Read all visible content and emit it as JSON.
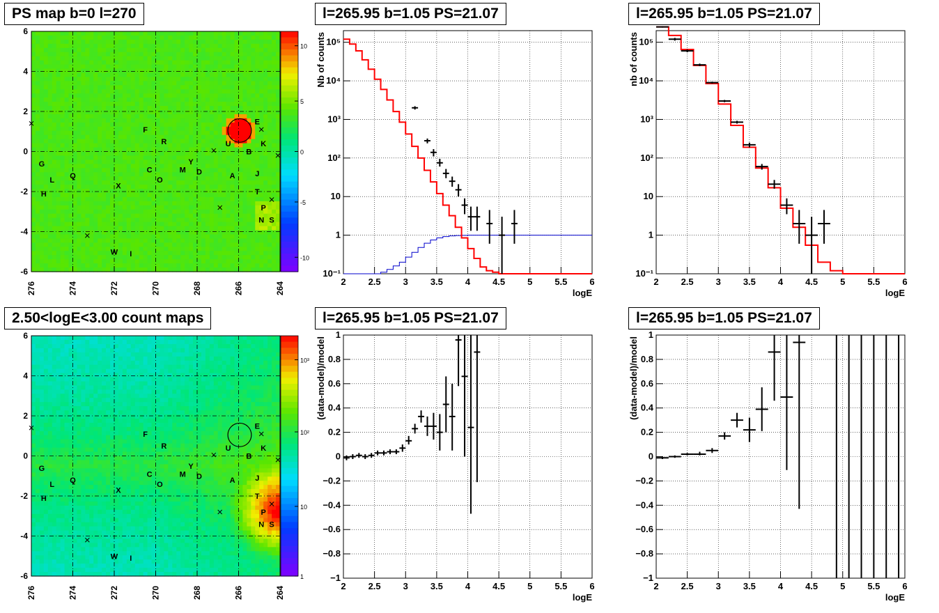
{
  "pads": {
    "map_top": {
      "title": "PS map b=0 l=270"
    },
    "map_bottom": {
      "title": "2.50<logE<3.00 count maps"
    },
    "spec_mid": {
      "title": "l=265.95 b=1.05 PS=21.07"
    },
    "spec_right": {
      "title": "l=265.95 b=1.05 PS=21.07"
    },
    "resid_mid": {
      "title": "l=265.95 b=1.05 PS=21.07"
    },
    "resid_right": {
      "title": "l=265.95 b=1.05 PS=21.07"
    }
  },
  "colors": {
    "data": "#000000",
    "model": "#ff0000",
    "psf": "#0000cc",
    "circle": "#000000"
  },
  "chart_data": [
    {
      "id": "map_top",
      "type": "heatmap",
      "title": "PS map b=0 l=270",
      "x_ticks": [
        "276",
        "274",
        "272",
        "270",
        "268",
        "266",
        "264"
      ],
      "y_ticks": [
        "6",
        "4",
        "2",
        "0",
        "-2",
        "-4",
        "-6"
      ],
      "xlim": [
        276,
        264
      ],
      "ylim": [
        -6,
        6
      ],
      "colorbar": {
        "scale": "linear",
        "range": [
          -12,
          12
        ],
        "ticks": [
          "10",
          "5",
          "0",
          "-5",
          "-10"
        ]
      },
      "grid": true,
      "labels": [
        {
          "t": "E",
          "l": 265.1,
          "b": 1.5
        },
        {
          "t": "U",
          "l": 266.5,
          "b": 0.4
        },
        {
          "t": "B",
          "l": 265.5,
          "b": 0.0
        },
        {
          "t": "K",
          "l": 264.8,
          "b": 0.4
        },
        {
          "t": "F",
          "l": 270.5,
          "b": 1.1
        },
        {
          "t": "R",
          "l": 269.6,
          "b": 0.5
        },
        {
          "t": "G",
          "l": 275.5,
          "b": -0.6
        },
        {
          "t": "L",
          "l": 275.0,
          "b": -1.4
        },
        {
          "t": "Q",
          "l": 274.0,
          "b": -1.2
        },
        {
          "t": "H",
          "l": 275.4,
          "b": -2.1
        },
        {
          "t": "C",
          "l": 270.3,
          "b": -0.9
        },
        {
          "t": "O",
          "l": 269.8,
          "b": -1.4
        },
        {
          "t": "M",
          "l": 268.7,
          "b": -0.9
        },
        {
          "t": "Y",
          "l": 268.3,
          "b": -0.5
        },
        {
          "t": "D",
          "l": 267.9,
          "b": -1.0
        },
        {
          "t": "A",
          "l": 266.3,
          "b": -1.2
        },
        {
          "t": "J",
          "l": 265.1,
          "b": -1.1
        },
        {
          "t": "T",
          "l": 265.1,
          "b": -2.0
        },
        {
          "t": "P",
          "l": 264.8,
          "b": -2.8
        },
        {
          "t": "N",
          "l": 264.9,
          "b": -3.4
        },
        {
          "t": "S",
          "l": 264.4,
          "b": -3.4
        },
        {
          "t": "X",
          "l": 271.8,
          "b": -1.7
        },
        {
          "t": "W",
          "l": 272.0,
          "b": -5.0
        },
        {
          "t": "I",
          "l": 271.2,
          "b": -5.1
        }
      ],
      "crosses": [
        [
          276,
          1.4
        ],
        [
          267.2,
          0.05
        ],
        [
          266.9,
          -2.8
        ],
        [
          273.3,
          -4.2
        ],
        [
          264.9,
          1.1
        ],
        [
          264.4,
          -2.4
        ],
        [
          264.1,
          -0.2
        ]
      ],
      "circle": {
        "l": 265.95,
        "b": 1.05,
        "r": 0.5
      },
      "hotspot": {
        "l": 265.95,
        "b": 1.05
      }
    },
    {
      "id": "map_bottom",
      "type": "heatmap",
      "title": "2.50<logE<3.00 count maps",
      "x_ticks": [
        "276",
        "274",
        "272",
        "270",
        "268",
        "266",
        "264"
      ],
      "y_ticks": [
        "6",
        "4",
        "2",
        "0",
        "-2",
        "-4",
        "-6"
      ],
      "xlim": [
        276,
        264
      ],
      "ylim": [
        -6,
        6
      ],
      "colorbar": {
        "scale": "log",
        "range": [
          1,
          5000
        ],
        "ticks": [
          "10³",
          "10²",
          "10",
          "1"
        ]
      },
      "grid": true,
      "labels": "same_as_map_top",
      "circle": {
        "l": 265.95,
        "b": 1.05,
        "r": 0.5
      },
      "hotspot": {
        "l": 264.0,
        "b": -2.8
      }
    },
    {
      "id": "spec_mid",
      "type": "line",
      "title": "l=265.95 b=1.05 PS=21.07",
      "xlabel": "logE",
      "ylabel": "Nb of counts",
      "xlim": [
        2,
        6
      ],
      "ylim": [
        0.1,
        200000
      ],
      "yscale": "log",
      "x_ticks": [
        "2",
        "2.5",
        "3",
        "3.5",
        "4",
        "4.5",
        "5",
        "5.5",
        "6"
      ],
      "y_ticks": [
        "10⁻¹",
        "1",
        "10",
        "10²",
        "10³",
        "10⁴",
        "10⁵"
      ],
      "grid": true,
      "model_edges": [
        2,
        2.1,
        2.2,
        2.3,
        2.4,
        2.5,
        2.6,
        2.7,
        2.8,
        2.9,
        3,
        3.1,
        3.2,
        3.3,
        3.4,
        3.5,
        3.6,
        3.7,
        3.8,
        3.9,
        4,
        4.1,
        4.2,
        4.3,
        4.4,
        4.5,
        4.6,
        4.7,
        4.8,
        4.9,
        5,
        5.1,
        5.2,
        5.3,
        5.4,
        5.5,
        5.6,
        5.7,
        5.8,
        5.9,
        6
      ],
      "model_values": [
        120000,
        90000,
        60000,
        35000,
        20000,
        11000,
        6000,
        3200,
        1600,
        850,
        420,
        200,
        100,
        48,
        24,
        12,
        6,
        3.2,
        1.6,
        0.85,
        0.45,
        0.25,
        0.15,
        0.12,
        0.11,
        0.1,
        0.1,
        0.1,
        0.1,
        0.1,
        0.1,
        0.1,
        0.1,
        0.1,
        0.1,
        0.1,
        0.1,
        0.1,
        0.1,
        0.1
      ],
      "psf_edges": [
        2,
        2.1,
        2.2,
        2.3,
        2.4,
        2.5,
        2.6,
        2.7,
        2.8,
        2.9,
        3,
        3.1,
        3.2,
        3.3,
        3.4,
        3.5,
        3.6,
        3.7,
        3.8,
        3.9,
        4,
        4.1,
        4.2,
        4.3,
        4.4,
        4.5,
        4.6,
        4.7,
        4.8,
        4.9,
        5,
        5.1,
        5.2,
        5.3,
        5.4,
        5.5,
        5.6,
        5.7,
        5.8,
        5.9,
        6
      ],
      "psf_values": [
        0.1,
        0.1,
        0.1,
        0.1,
        0.1,
        0.1,
        0.11,
        0.13,
        0.16,
        0.2,
        0.27,
        0.36,
        0.48,
        0.62,
        0.75,
        0.85,
        0.92,
        0.96,
        0.98,
        0.99,
        1,
        1,
        1,
        1,
        1,
        1,
        1,
        1,
        1,
        1,
        1,
        1,
        1,
        1,
        1,
        1,
        1,
        1,
        1,
        1,
        1
      ],
      "points": [
        {
          "x": 3.35,
          "y": 280,
          "ex": 0.05,
          "lo": 240,
          "hi": 320
        },
        {
          "x": 3.45,
          "y": 140,
          "ex": 0.05,
          "lo": 110,
          "hi": 170
        },
        {
          "x": 3.55,
          "y": 75,
          "ex": 0.05,
          "lo": 60,
          "hi": 95
        },
        {
          "x": 3.65,
          "y": 40,
          "ex": 0.05,
          "lo": 30,
          "hi": 52
        },
        {
          "x": 3.75,
          "y": 25,
          "ex": 0.05,
          "lo": 18,
          "hi": 33
        },
        {
          "x": 3.85,
          "y": 15,
          "ex": 0.05,
          "lo": 10,
          "hi": 21
        },
        {
          "x": 3.95,
          "y": 6,
          "ex": 0.05,
          "lo": 3.5,
          "hi": 9
        },
        {
          "x": 4.05,
          "y": 3,
          "ex": 0.05,
          "lo": 1.3,
          "hi": 5.5
        },
        {
          "x": 4.15,
          "y": 3,
          "ex": 0.05,
          "lo": 1.3,
          "hi": 5.5
        },
        {
          "x": 4.35,
          "y": 2,
          "ex": 0.05,
          "lo": 0.6,
          "hi": 4.5
        },
        {
          "x": 4.55,
          "y": 1,
          "ex": 0.05,
          "lo": 0.1,
          "hi": 3
        },
        {
          "x": 4.75,
          "y": 2,
          "ex": 0.05,
          "lo": 0.6,
          "hi": 4.5
        },
        {
          "x": 3.15,
          "y": 2000,
          "ex": 0.05,
          "lo": 1800,
          "hi": 2200
        }
      ]
    },
    {
      "id": "spec_right",
      "type": "line",
      "title": "l=265.95 b=1.05 PS=21.07",
      "xlabel": "logE",
      "ylabel": "nb of counts",
      "xlim": [
        2,
        6
      ],
      "ylim": [
        0.1,
        200000
      ],
      "yscale": "log",
      "x_ticks": [
        "2",
        "2.5",
        "3",
        "3.5",
        "4",
        "4.5",
        "5",
        "5.5",
        "6"
      ],
      "y_ticks": [
        "10⁻¹",
        "1",
        "10",
        "10²",
        "10³",
        "10⁴",
        "10⁵"
      ],
      "grid": true,
      "model_edges": [
        2,
        2.2,
        2.4,
        2.6,
        2.8,
        3,
        3.2,
        3.4,
        3.6,
        3.8,
        4,
        4.2,
        4.4,
        4.6,
        4.8,
        5,
        5.2,
        5.4,
        5.6,
        5.8,
        6
      ],
      "model_values": [
        250000,
        150000,
        65000,
        25000,
        8500,
        2500,
        700,
        190,
        55,
        17,
        5,
        1.6,
        0.55,
        0.2,
        0.12,
        0.1,
        0.1,
        0.1,
        0.1,
        0.1
      ],
      "points": [
        {
          "x": 2.1,
          "y": 250000,
          "ex": 0.1,
          "lo": 240000,
          "hi": 260000
        },
        {
          "x": 2.3,
          "y": 120000,
          "ex": 0.1,
          "lo": 110000,
          "hi": 130000
        },
        {
          "x": 2.5,
          "y": 60000,
          "ex": 0.1,
          "lo": 55000,
          "hi": 65000
        },
        {
          "x": 2.7,
          "y": 26000,
          "ex": 0.1,
          "lo": 24000,
          "hi": 28000
        },
        {
          "x": 2.9,
          "y": 9000,
          "ex": 0.1,
          "lo": 8500,
          "hi": 9500
        },
        {
          "x": 3.1,
          "y": 3000,
          "ex": 0.1,
          "lo": 2800,
          "hi": 3200
        },
        {
          "x": 3.3,
          "y": 850,
          "ex": 0.1,
          "lo": 780,
          "hi": 920
        },
        {
          "x": 3.5,
          "y": 220,
          "ex": 0.1,
          "lo": 190,
          "hi": 250
        },
        {
          "x": 3.7,
          "y": 60,
          "ex": 0.1,
          "lo": 50,
          "hi": 70
        },
        {
          "x": 3.9,
          "y": 21,
          "ex": 0.1,
          "lo": 16,
          "hi": 27
        },
        {
          "x": 4.1,
          "y": 6,
          "ex": 0.1,
          "lo": 3.5,
          "hi": 9
        },
        {
          "x": 4.3,
          "y": 2,
          "ex": 0.1,
          "lo": 0.6,
          "hi": 4.5
        },
        {
          "x": 4.5,
          "y": 1,
          "ex": 0.1,
          "lo": 0.1,
          "hi": 3
        },
        {
          "x": 4.7,
          "y": 2,
          "ex": 0.1,
          "lo": 0.6,
          "hi": 4.5
        }
      ]
    },
    {
      "id": "resid_mid",
      "type": "scatter",
      "title": "l=265.95 b=1.05 PS=21.07",
      "xlabel": "logE",
      "ylabel": "(data-model)/model",
      "xlim": [
        2,
        6
      ],
      "ylim": [
        -1,
        1
      ],
      "x_ticks": [
        "2",
        "2.5",
        "3",
        "3.5",
        "4",
        "4.5",
        "5",
        "5.5",
        "6"
      ],
      "y_ticks": [
        "−1",
        "−0.8",
        "−0.6",
        "−0.4",
        "−0.2",
        "0",
        "0.2",
        "0.4",
        "0.6",
        "0.8",
        "1"
      ],
      "grid": true,
      "points": [
        {
          "x": 2.05,
          "y": -0.01,
          "ex": 0.05,
          "lo": -0.03,
          "hi": 0.01
        },
        {
          "x": 2.15,
          "y": 0.0,
          "ex": 0.05,
          "lo": -0.02,
          "hi": 0.02
        },
        {
          "x": 2.25,
          "y": 0.01,
          "ex": 0.05,
          "lo": -0.01,
          "hi": 0.03
        },
        {
          "x": 2.35,
          "y": 0.0,
          "ex": 0.05,
          "lo": -0.02,
          "hi": 0.02
        },
        {
          "x": 2.45,
          "y": 0.01,
          "ex": 0.05,
          "lo": -0.01,
          "hi": 0.03
        },
        {
          "x": 2.55,
          "y": 0.03,
          "ex": 0.05,
          "lo": 0.01,
          "hi": 0.05
        },
        {
          "x": 2.65,
          "y": 0.03,
          "ex": 0.05,
          "lo": 0.01,
          "hi": 0.05
        },
        {
          "x": 2.75,
          "y": 0.04,
          "ex": 0.05,
          "lo": 0.02,
          "hi": 0.06
        },
        {
          "x": 2.85,
          "y": 0.04,
          "ex": 0.05,
          "lo": 0.02,
          "hi": 0.06
        },
        {
          "x": 2.95,
          "y": 0.07,
          "ex": 0.05,
          "lo": 0.04,
          "hi": 0.1
        },
        {
          "x": 3.05,
          "y": 0.13,
          "ex": 0.05,
          "lo": 0.1,
          "hi": 0.17
        },
        {
          "x": 3.15,
          "y": 0.23,
          "ex": 0.05,
          "lo": 0.19,
          "hi": 0.27
        },
        {
          "x": 3.25,
          "y": 0.33,
          "ex": 0.05,
          "lo": 0.28,
          "hi": 0.38
        },
        {
          "x": 3.35,
          "y": 0.25,
          "ex": 0.05,
          "lo": 0.17,
          "hi": 0.33
        },
        {
          "x": 3.45,
          "y": 0.25,
          "ex": 0.05,
          "lo": 0.14,
          "hi": 0.36
        },
        {
          "x": 3.55,
          "y": 0.2,
          "ex": 0.05,
          "lo": 0.05,
          "hi": 0.35
        },
        {
          "x": 3.65,
          "y": 0.43,
          "ex": 0.05,
          "lo": 0.2,
          "hi": 0.66
        },
        {
          "x": 3.75,
          "y": 0.33,
          "ex": 0.05,
          "lo": 0.05,
          "hi": 0.6
        },
        {
          "x": 3.85,
          "y": 0.96,
          "ex": 0.05,
          "lo": 0.58,
          "hi": 1.0
        },
        {
          "x": 3.95,
          "y": 0.66,
          "ex": 0.05,
          "lo": 0.0,
          "hi": 1.0
        },
        {
          "x": 4.05,
          "y": 0.24,
          "ex": 0.05,
          "lo": -0.47,
          "hi": 1.0
        },
        {
          "x": 4.15,
          "y": 0.86,
          "ex": 0.05,
          "lo": -0.21,
          "hi": 1.0
        }
      ]
    },
    {
      "id": "resid_right",
      "type": "scatter",
      "title": "l=265.95 b=1.05 PS=21.07",
      "xlabel": "logE",
      "ylabel": "(data-model)/model",
      "xlim": [
        2,
        6
      ],
      "ylim": [
        -1,
        1
      ],
      "x_ticks": [
        "2",
        "2.5",
        "3",
        "3.5",
        "4",
        "4.5",
        "5",
        "5.5",
        "6"
      ],
      "y_ticks": [
        "−1",
        "−0.8",
        "−0.6",
        "−0.4",
        "−0.2",
        "0",
        "0.2",
        "0.4",
        "0.6",
        "0.8",
        "1"
      ],
      "grid": true,
      "points": [
        {
          "x": 2.1,
          "y": -0.01,
          "ex": 0.1,
          "lo": -0.02,
          "hi": 0.0
        },
        {
          "x": 2.3,
          "y": 0.0,
          "ex": 0.1,
          "lo": -0.01,
          "hi": 0.01
        },
        {
          "x": 2.5,
          "y": 0.02,
          "ex": 0.1,
          "lo": 0.01,
          "hi": 0.03
        },
        {
          "x": 2.7,
          "y": 0.02,
          "ex": 0.1,
          "lo": 0.01,
          "hi": 0.04
        },
        {
          "x": 2.9,
          "y": 0.05,
          "ex": 0.1,
          "lo": 0.03,
          "hi": 0.07
        },
        {
          "x": 3.1,
          "y": 0.17,
          "ex": 0.1,
          "lo": 0.14,
          "hi": 0.2
        },
        {
          "x": 3.3,
          "y": 0.3,
          "ex": 0.1,
          "lo": 0.24,
          "hi": 0.36
        },
        {
          "x": 3.5,
          "y": 0.22,
          "ex": 0.1,
          "lo": 0.12,
          "hi": 0.32
        },
        {
          "x": 3.7,
          "y": 0.39,
          "ex": 0.1,
          "lo": 0.21,
          "hi": 0.57
        },
        {
          "x": 3.9,
          "y": 0.86,
          "ex": 0.1,
          "lo": 0.46,
          "hi": 1.0
        },
        {
          "x": 4.1,
          "y": 0.49,
          "ex": 0.1,
          "lo": -0.11,
          "hi": 1.0
        },
        {
          "x": 4.3,
          "y": 0.94,
          "ex": 0.1,
          "lo": -0.43,
          "hi": 1.0
        },
        {
          "x": 4.9,
          "y": -1.0,
          "ex": 0.0,
          "lo": -1.0,
          "hi": 1.0
        },
        {
          "x": 5.1,
          "y": -1.0,
          "ex": 0.0,
          "lo": -1.0,
          "hi": 1.0
        },
        {
          "x": 5.3,
          "y": -1.0,
          "ex": 0.0,
          "lo": -1.0,
          "hi": 1.0
        },
        {
          "x": 5.5,
          "y": -1.0,
          "ex": 0.0,
          "lo": -1.0,
          "hi": 1.0
        },
        {
          "x": 5.7,
          "y": -1.0,
          "ex": 0.0,
          "lo": -1.0,
          "hi": 1.0
        },
        {
          "x": 5.9,
          "y": -1.0,
          "ex": 0.0,
          "lo": -1.0,
          "hi": 1.0
        }
      ]
    }
  ]
}
